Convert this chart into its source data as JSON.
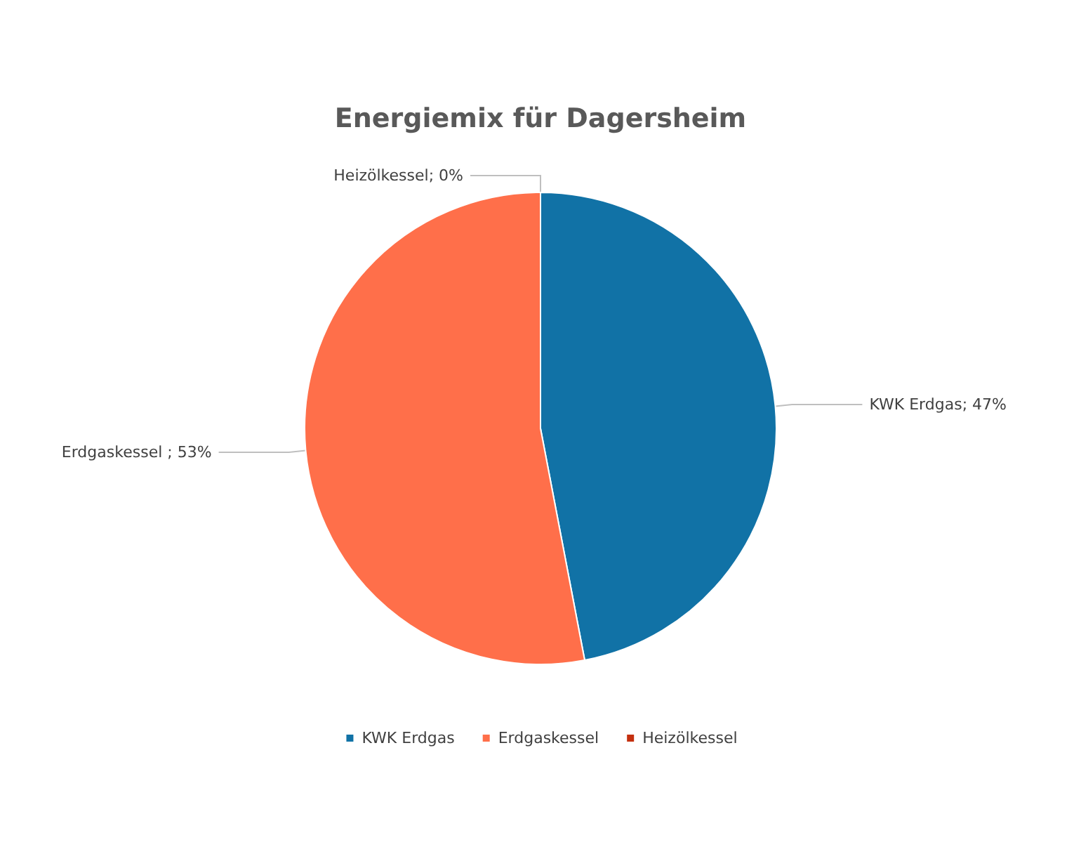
{
  "chart_data": {
    "type": "pie",
    "title": "Energiemix für Dagersheim",
    "categories": [
      "KWK Erdgas",
      "Erdgaskessel",
      "Heizölkessel"
    ],
    "values": [
      47,
      53,
      0
    ],
    "colors": [
      "#1172a6",
      "#ff6f4a",
      "#c4300f"
    ],
    "value_labels": [
      "KWK Erdgas; 47%",
      "Erdgaskessel ; 53%",
      "Heizölkessel; 0%"
    ],
    "legend": "bottom"
  }
}
